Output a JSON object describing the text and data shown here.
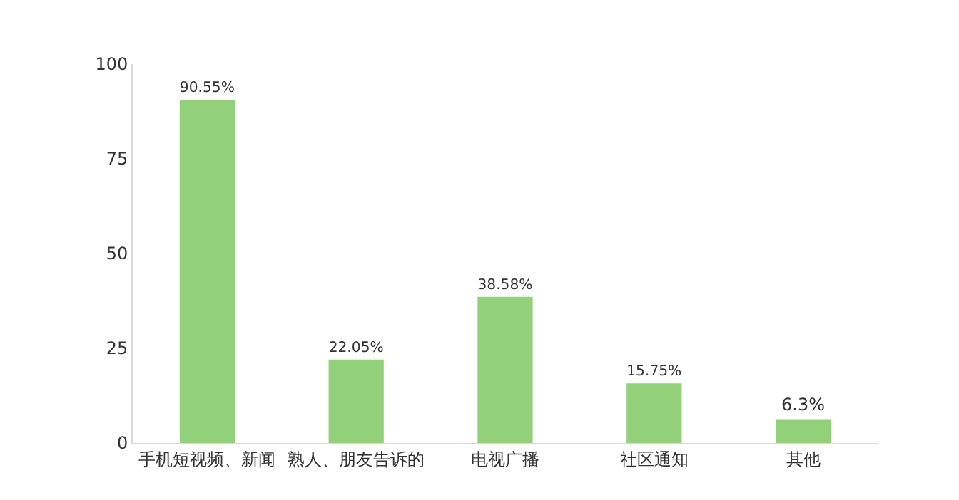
{
  "chart_data": {
    "type": "bar",
    "categories": [
      "手机短视频、新闻",
      "熟人、朋友告诉的",
      "电视广播",
      "社区通知",
      "其他"
    ],
    "values": [
      90.55,
      22.05,
      38.58,
      15.75,
      6.3
    ],
    "value_labels": [
      "90.55%",
      "22.05%",
      "38.58%",
      "15.75%",
      "6.3%"
    ],
    "color": "#92d07a",
    "ylim": [
      0,
      100
    ],
    "yticks": [
      0,
      25,
      50,
      75,
      100
    ],
    "grid": false,
    "legend": false
  }
}
